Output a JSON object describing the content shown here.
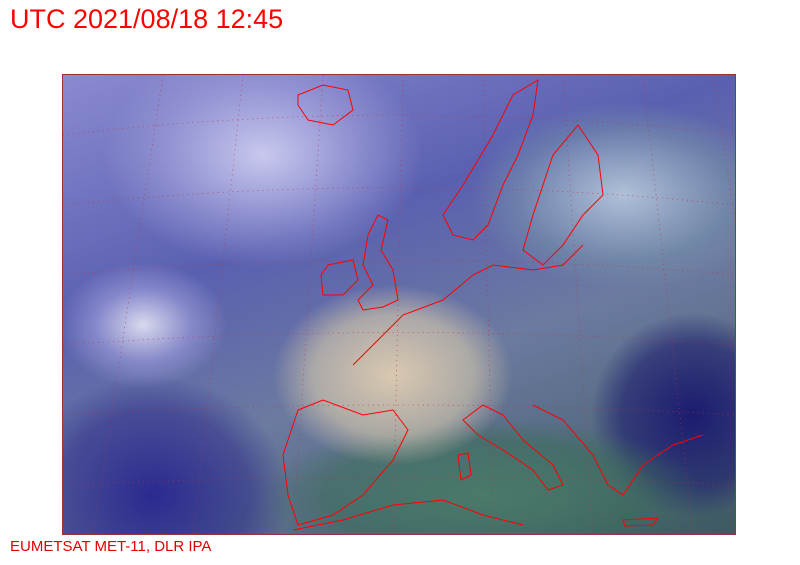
{
  "header": {
    "title": "UTC 2021/08/18 12:45"
  },
  "map": {
    "type": "satellite-image",
    "region": "Europe",
    "coastline_color": "#ff0000",
    "grid_color": "#c03040"
  },
  "footer": {
    "credit": "EUMETSAT MET-11, DLR IPA"
  }
}
